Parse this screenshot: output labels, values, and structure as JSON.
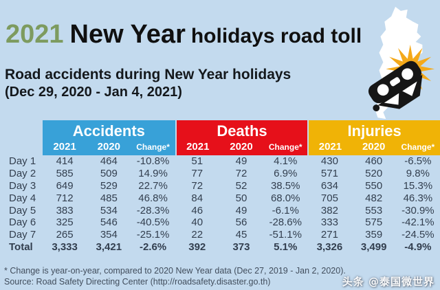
{
  "page": {
    "title": {
      "year": "2021",
      "emphasis": "New Year",
      "rest": "holidays road toll"
    },
    "subtitle": "Road accidents during New Year holidays",
    "date_range": "(Dec 29, 2020 - Jan 4, 2021)",
    "footnote": "* Change is year-on-year, compared to 2020 New Year data (Dec 27, 2019 - Jan 2, 2020).",
    "source": "Source: Road Safety Directing Center (http://roadsafety.disaster.go.th)",
    "watermark": "头条 @泰国微世界",
    "colors": {
      "bg": "#c3daee",
      "accidents": "#38a1d8",
      "deaths": "#e6101a",
      "injuries": "#f0b306",
      "green": "#7d9b5f",
      "text": "#323e4e",
      "headertext": "#ffffff",
      "footertext": "#414d5c",
      "map": "#ffffff",
      "burst": "#f4a91a",
      "car": "#161616"
    }
  },
  "chart_data": {
    "type": "table",
    "title": "2021 New Year holidays road toll",
    "subtitle": "Road accidents during New Year holidays (Dec 29, 2020 - Jan 4, 2021)",
    "groups": [
      {
        "label": "Accidents"
      },
      {
        "label": "Deaths"
      },
      {
        "label": "Injuries"
      }
    ],
    "sub_columns": [
      "2021",
      "2020",
      "Change*"
    ],
    "row_labels": [
      "Day 1",
      "Day 2",
      "Day 3",
      "Day 4",
      "Day 5",
      "Day 6",
      "Day 7",
      "Total"
    ],
    "rows": [
      [
        "Day 1",
        "414",
        "464",
        "-10.8%",
        "51",
        "49",
        "4.1%",
        "430",
        "460",
        "-6.5%"
      ],
      [
        "Day 2",
        "585",
        "509",
        "14.9%",
        "77",
        "72",
        "6.9%",
        "571",
        "520",
        "9.8%"
      ],
      [
        "Day 3",
        "649",
        "529",
        "22.7%",
        "72",
        "52",
        "38.5%",
        "634",
        "550",
        "15.3%"
      ],
      [
        "Day 4",
        "712",
        "485",
        "46.8%",
        "84",
        "50",
        "68.0%",
        "705",
        "482",
        "46.3%"
      ],
      [
        "Day 5",
        "383",
        "534",
        "-28.3%",
        "46",
        "49",
        "-6.1%",
        "382",
        "553",
        "-30.9%"
      ],
      [
        "Day 6",
        "325",
        "546",
        "-40.5%",
        "40",
        "56",
        "-28.6%",
        "333",
        "575",
        "-42.1%"
      ],
      [
        "Day 7",
        "265",
        "354",
        "-25.1%",
        "22",
        "45",
        "-51.1%",
        "271",
        "359",
        "-24.5%"
      ],
      [
        "Total",
        "3,333",
        "3,421",
        "-2.6%",
        "392",
        "373",
        "5.1%",
        "3,326",
        "3,499",
        "-4.9%"
      ]
    ]
  }
}
